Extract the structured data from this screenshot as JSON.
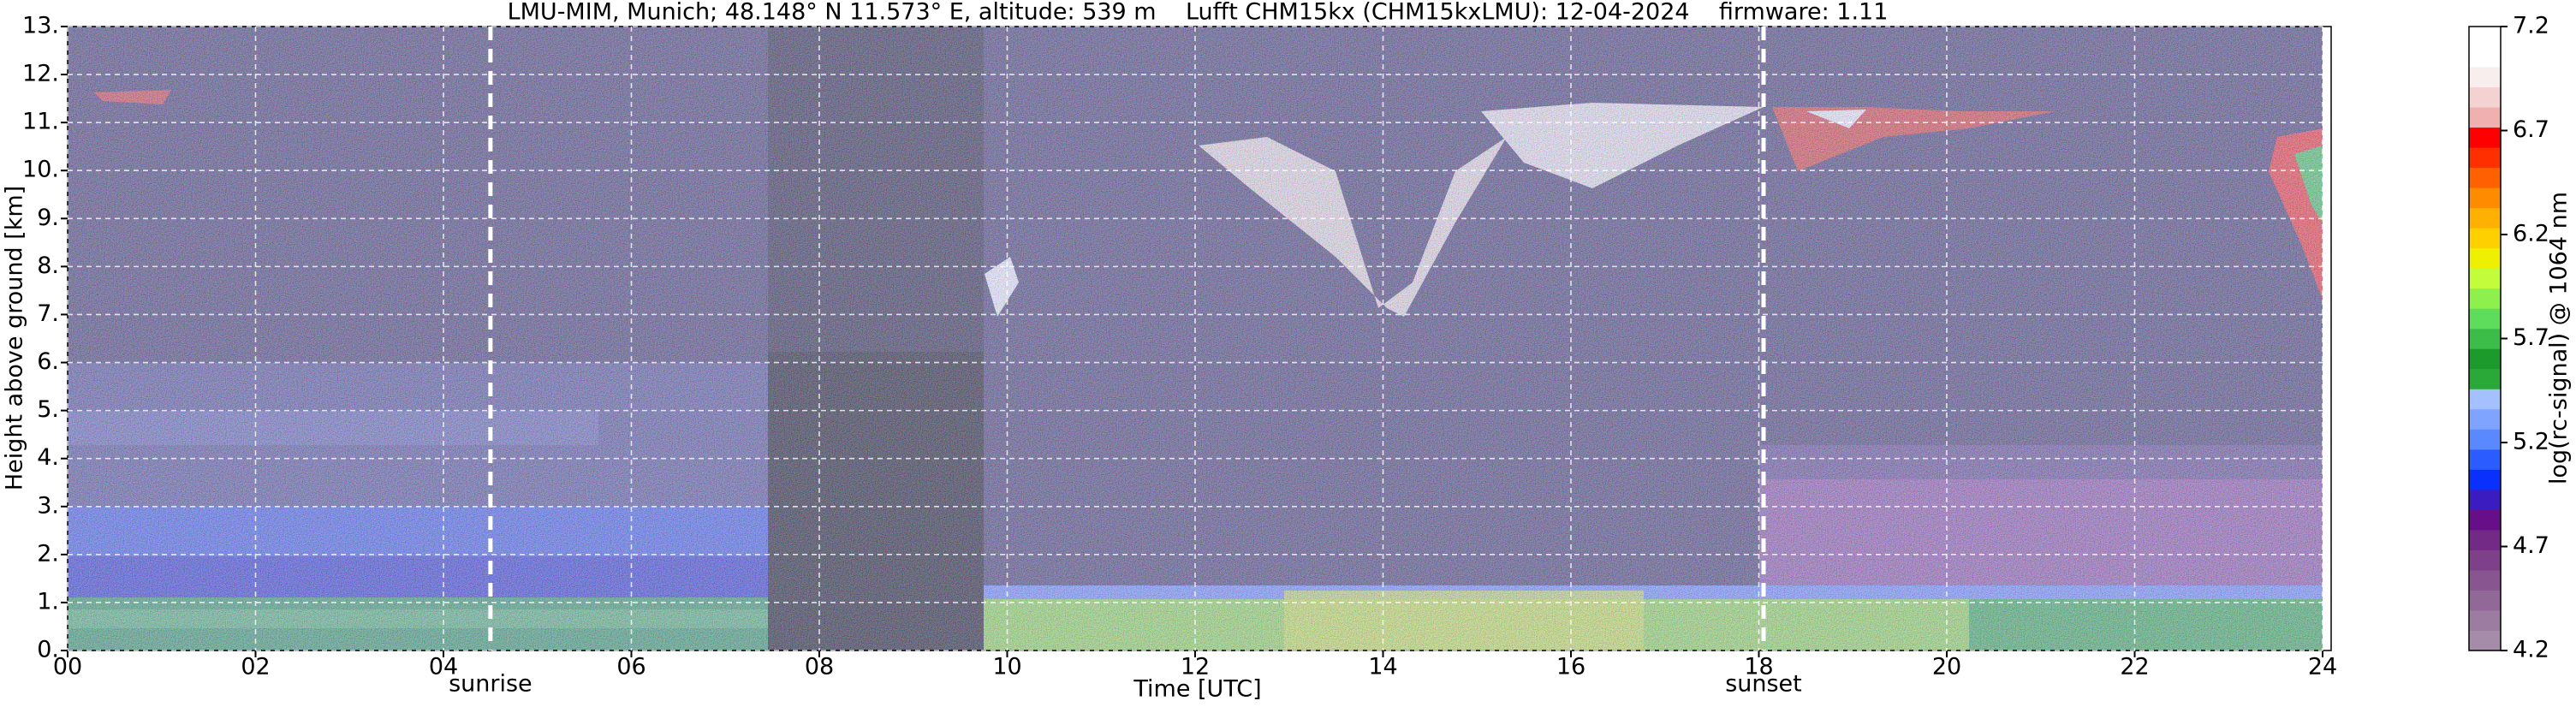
{
  "chart_data": {
    "type": "heatmap",
    "title": "LMU-MIM, Munich; 48.148° N 11.573° E, altitude: 539 m    Lufft CHM15kx (CHM15kxLMU): 12-04-2024    firmware: 1.11",
    "x_label": "Time [UTC]",
    "y_label": "Height above ground [km]",
    "colorbar_label": "log(rc-signal) @ 1064 nm",
    "xlim": [
      0,
      24
    ],
    "xticks": [
      {
        "value": 0,
        "label": "00"
      },
      {
        "value": 2,
        "label": "02"
      },
      {
        "value": 4,
        "label": "04"
      },
      {
        "value": 6,
        "label": "06"
      },
      {
        "value": 8,
        "label": "08"
      },
      10,
      12,
      14,
      16,
      18,
      20,
      22,
      24
    ],
    "ylim": [
      0,
      13
    ],
    "yticks": [
      {
        "value": 0,
        "label": "0."
      },
      {
        "value": 1,
        "label": "1."
      },
      {
        "value": 2,
        "label": "2."
      },
      {
        "value": 3,
        "label": "3."
      },
      {
        "value": 4,
        "label": "4."
      },
      {
        "value": 5,
        "label": "5."
      },
      {
        "value": 6,
        "label": "6."
      },
      {
        "value": 7,
        "label": "7."
      },
      {
        "value": 8,
        "label": "8."
      },
      {
        "value": 9,
        "label": "9."
      },
      {
        "value": 10,
        "label": "10."
      },
      {
        "value": 11,
        "label": "11."
      },
      {
        "value": 12,
        "label": "12."
      },
      {
        "value": 13,
        "label": "13."
      }
    ],
    "clim": [
      4.2,
      7.2
    ],
    "cticks": [
      4.2,
      4.7,
      5.2,
      5.7,
      6.2,
      6.7,
      7.2
    ],
    "colormap": [
      "#a58ca8",
      "#9c7ca0",
      "#926898",
      "#885590",
      "#7e4089",
      "#722a86",
      "#660f88",
      "#3a1cc0",
      "#0a30ff",
      "#2a5cff",
      "#5a88ff",
      "#7ea4ff",
      "#a4c0ff",
      "#2aa838",
      "#1c9a2c",
      "#3cbc48",
      "#5edc5c",
      "#8ef04c",
      "#c2fc3a",
      "#eef000",
      "#ffd000",
      "#ffb000",
      "#ff8c00",
      "#ff6000",
      "#ff3000",
      "#ff0000",
      "#f0b0b0",
      "#f4d2d2",
      "#f8eeee",
      "#ffffff",
      "#ffffff"
    ],
    "grid": true,
    "annotations": [
      {
        "x": 4.5,
        "label": "sunrise"
      },
      {
        "x": 18.05,
        "label": "sunset"
      }
    ]
  }
}
